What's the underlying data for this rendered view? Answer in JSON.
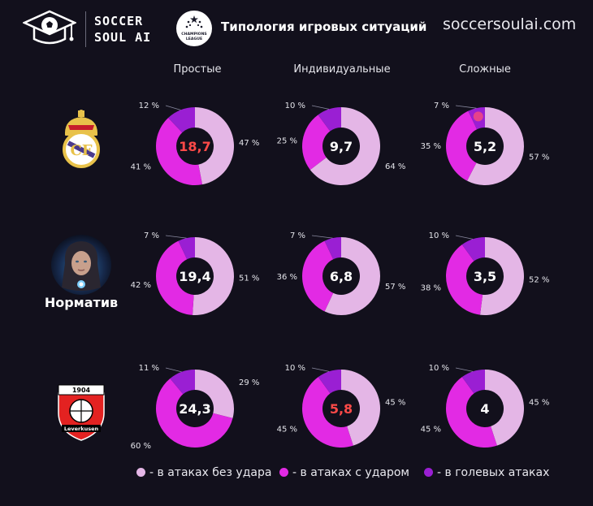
{
  "header": {
    "brand_line1": "SOCCER",
    "brand_line2": "SOUL AI",
    "title": "Типология игровых ситуаций",
    "site": "soccersoulai.com",
    "ucl_text1": "CHAMPIONS",
    "ucl_text2": "LEAGUE"
  },
  "teams": {
    "row1": {
      "name": "Real Madrid",
      "logo_icon": "real-madrid-crest-icon"
    },
    "row2": {
      "label": "Норматив",
      "logo_icon": "ai-woman-avatar-icon"
    },
    "row3": {
      "name": "Bayer 04 Leverkusen",
      "logo_icon": "bayer-leverkusen-crest-icon"
    }
  },
  "colors": {
    "no_shot": "#e4b6e6",
    "shot": "#e22ae4",
    "goal": "#9a1fd3",
    "goal_sector_highlight": "#ff4f73",
    "highlight_text": "#ff4a48",
    "normal_text": "#ffffff"
  },
  "chart_data": {
    "type": "donut-grid",
    "title": "Типология игровых ситуаций",
    "columns": [
      "Простые",
      "Индивидуальные",
      "Сложные"
    ],
    "rows": [
      "Real Madrid",
      "Норматив",
      "Bayer 04 Leverkusen"
    ],
    "legend": [
      {
        "key": "no_shot",
        "label": "- в атаках без удара"
      },
      {
        "key": "shot",
        "label": "- в атаках с ударом"
      },
      {
        "key": "goal",
        "label": "- в голевых атаках"
      }
    ],
    "charts": [
      {
        "row": 0,
        "col": 0,
        "center": "18,7",
        "highlight": true,
        "no_shot": 47,
        "shot": 41,
        "goal": 12,
        "no_shot_label": "47 %",
        "shot_label": "41 %",
        "goal_label": "12 %"
      },
      {
        "row": 0,
        "col": 1,
        "center": "9,7",
        "highlight": false,
        "no_shot": 64,
        "shot": 25,
        "goal": 10,
        "no_shot_label": "64 %",
        "shot_label": "25 %",
        "goal_label": "10 %"
      },
      {
        "row": 0,
        "col": 2,
        "center": "5,2",
        "highlight": false,
        "goal_highlight": true,
        "no_shot": 57,
        "shot": 35,
        "goal": 7,
        "no_shot_label": "57 %",
        "shot_label": "35 %",
        "goal_label": "7 %"
      },
      {
        "row": 1,
        "col": 0,
        "center": "19,4",
        "highlight": false,
        "no_shot": 51,
        "shot": 42,
        "goal": 7,
        "no_shot_label": "51 %",
        "shot_label": "42 %",
        "goal_label": "7 %"
      },
      {
        "row": 1,
        "col": 1,
        "center": "6,8",
        "highlight": false,
        "no_shot": 57,
        "shot": 36,
        "goal": 7,
        "no_shot_label": "57 %",
        "shot_label": "36 %",
        "goal_label": "7 %"
      },
      {
        "row": 1,
        "col": 2,
        "center": "3,5",
        "highlight": false,
        "no_shot": 52,
        "shot": 38,
        "goal": 10,
        "no_shot_label": "52 %",
        "shot_label": "38 %",
        "goal_label": "10 %"
      },
      {
        "row": 2,
        "col": 0,
        "center": "24,3",
        "highlight": false,
        "no_shot": 29,
        "shot": 60,
        "goal": 11,
        "no_shot_label": "29 %",
        "shot_label": "60 %",
        "goal_label": "11 %"
      },
      {
        "row": 2,
        "col": 1,
        "center": "5,8",
        "highlight": true,
        "no_shot": 45,
        "shot": 45,
        "goal": 10,
        "no_shot_label": "45 %",
        "shot_label": "45 %",
        "goal_label": "10 %"
      },
      {
        "row": 2,
        "col": 2,
        "center": "4",
        "highlight": false,
        "no_shot": 45,
        "shot": 45,
        "goal": 10,
        "no_shot_label": "45 %",
        "shot_label": "45 %",
        "goal_label": "10 %"
      }
    ]
  }
}
